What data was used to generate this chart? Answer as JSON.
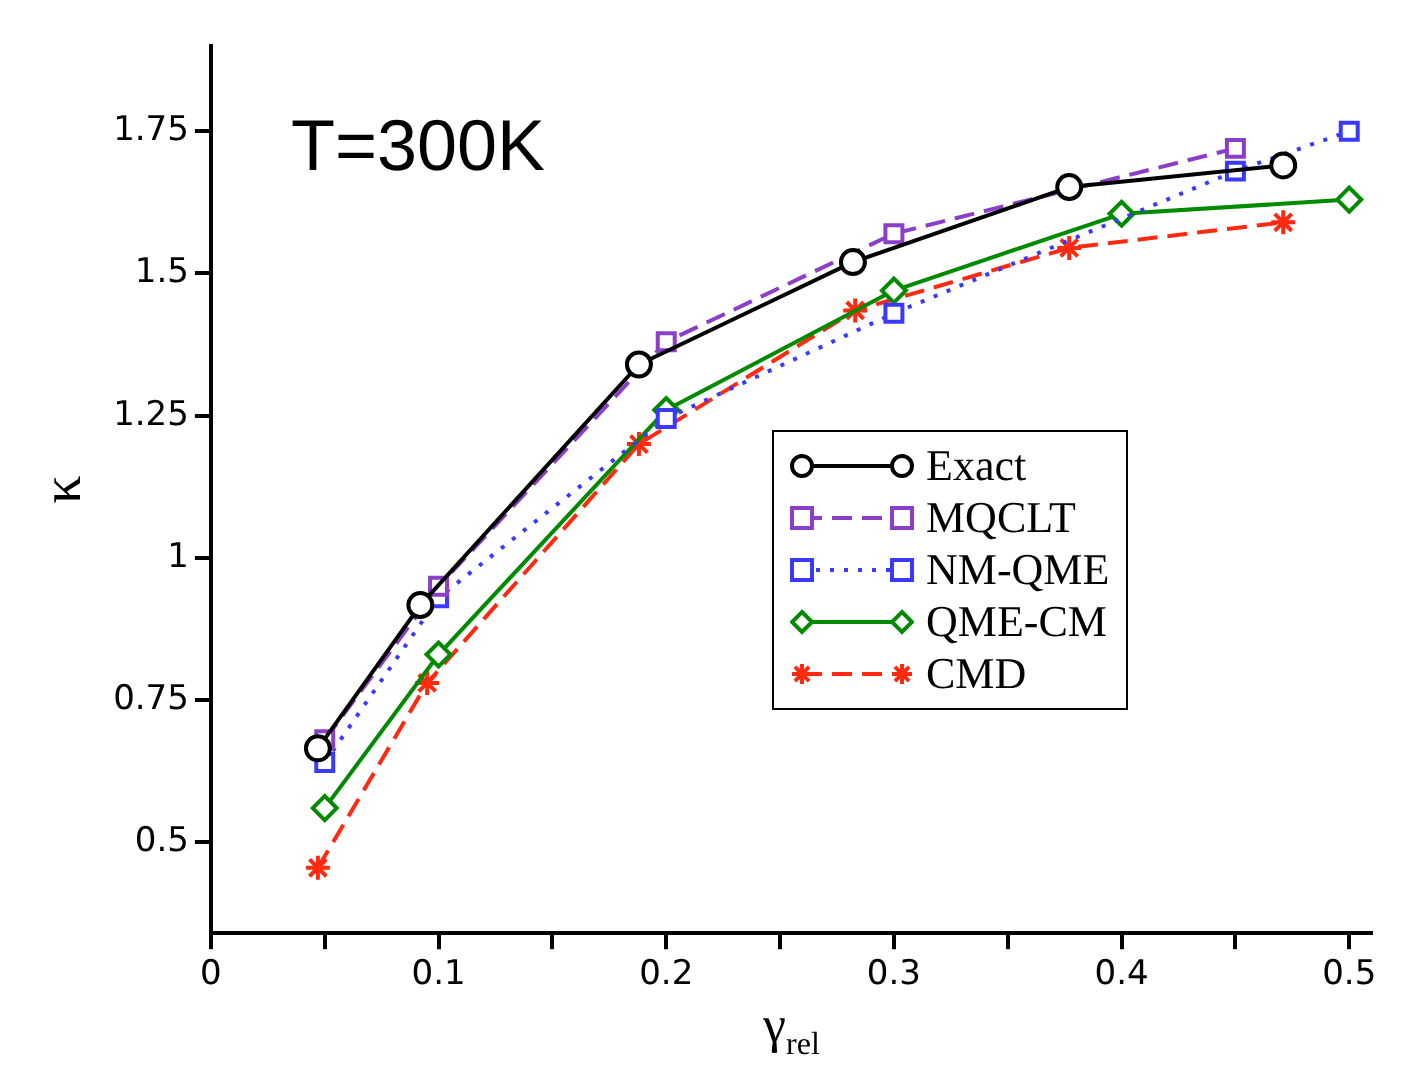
{
  "chart_data": {
    "type": "line",
    "xlabel": "γ$_{rel}$",
    "ylabel": "κ",
    "annotations": [
      "T=300K"
    ],
    "xlim": [
      0,
      0.51
    ],
    "ylim": [
      0.34,
      1.9
    ],
    "xticks": [
      0,
      {
        "value": 0.05,
        "label": null
      },
      0.1,
      {
        "value": 0.15,
        "label": null
      },
      0.2,
      {
        "value": 0.25,
        "label": null
      },
      0.3,
      {
        "value": 0.35,
        "label": null
      },
      0.4,
      {
        "value": 0.45,
        "label": null
      },
      0.5
    ],
    "yticks": [
      0.5,
      0.75,
      1,
      1.25,
      1.5,
      1.75
    ],
    "grid": false,
    "legend": "right",
    "series": [
      {
        "name": "Exact",
        "color": "#000000",
        "marker": "circle",
        "line_style": "solid",
        "x": [
          0.047,
          0.092,
          0.188,
          0.282,
          0.377,
          0.471
        ],
        "values": [
          0.665,
          0.917,
          1.34,
          1.52,
          1.652,
          1.69
        ]
      },
      {
        "name": "MQCLT",
        "color": "#8b3fc8",
        "marker": "square",
        "line_style": "dashed",
        "x": [
          0.05,
          0.1,
          0.2,
          0.3,
          0.45
        ],
        "values": [
          0.68,
          0.95,
          1.38,
          1.57,
          1.72
        ]
      },
      {
        "name": "NM-QME",
        "color": "#3a3aff",
        "marker": "square",
        "line_style": "dotted",
        "x": [
          0.05,
          0.1,
          0.2,
          0.3,
          0.45,
          0.5
        ],
        "values": [
          0.64,
          0.93,
          1.245,
          1.43,
          1.68,
          1.75
        ]
      },
      {
        "name": "QME-CM",
        "color": "#008a00",
        "marker": "diamond",
        "line_style": "solid",
        "x": [
          0.05,
          0.1,
          0.2,
          0.3,
          0.4,
          0.5
        ],
        "values": [
          0.56,
          0.83,
          1.26,
          1.47,
          1.605,
          1.63
        ]
      },
      {
        "name": "CMD",
        "color": "#ff2a10",
        "marker": "cross",
        "line_style": "dashed",
        "x": [
          0.047,
          0.095,
          0.188,
          0.283,
          0.377,
          0.471
        ],
        "values": [
          0.455,
          0.78,
          1.2,
          1.435,
          1.545,
          1.59
        ]
      }
    ]
  }
}
